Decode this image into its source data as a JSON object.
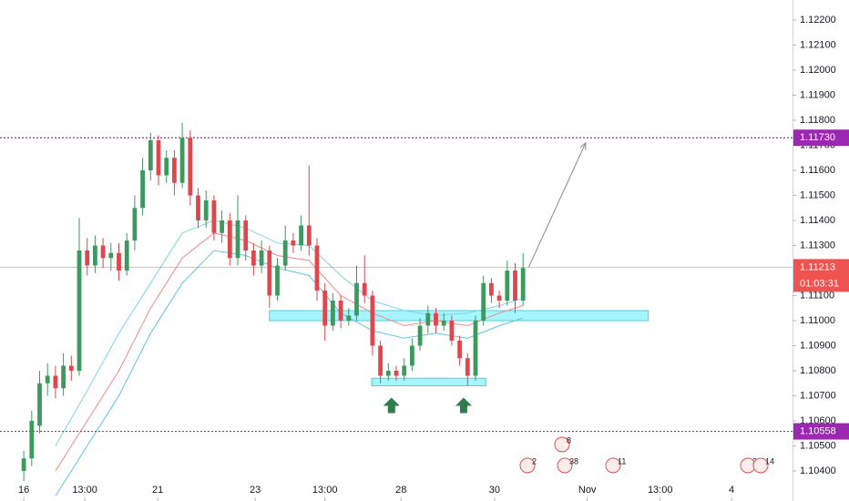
{
  "chart_data": {
    "type": "candlestick",
    "xlim": [
      -3,
      97
    ],
    "ylim": [
      1.1028,
      1.1228
    ],
    "xticks": [
      {
        "value": 0,
        "label": "16"
      },
      {
        "value": 7.7,
        "label": "13:00"
      },
      {
        "value": 16.9,
        "label": "21"
      },
      {
        "value": 29.2,
        "label": "23"
      },
      {
        "value": 38,
        "label": "13:00"
      },
      {
        "value": 47.6,
        "label": "28"
      },
      {
        "value": 59.4,
        "label": "30"
      },
      {
        "value": 71.1,
        "label": "Nov"
      },
      {
        "value": 80.3,
        "label": "13:00"
      },
      {
        "value": 89.3,
        "label": "4"
      }
    ],
    "yticks": [
      {
        "value": 1.104,
        "label": "1.10400"
      },
      {
        "value": 1.105,
        "label": "1.10500"
      },
      {
        "value": 1.106,
        "label": "1.10600"
      },
      {
        "value": 1.107,
        "label": "1.10700"
      },
      {
        "value": 1.108,
        "label": "1.10800"
      },
      {
        "value": 1.109,
        "label": "1.10900"
      },
      {
        "value": 1.11,
        "label": "1.11000"
      },
      {
        "value": 1.111,
        "label": "1.11100"
      },
      {
        "value": 1.112,
        "label": "1.11200"
      },
      {
        "value": 1.113,
        "label": "1.11300"
      },
      {
        "value": 1.114,
        "label": "1.11400"
      },
      {
        "value": 1.115,
        "label": "1.11500"
      },
      {
        "value": 1.116,
        "label": "1.11600"
      },
      {
        "value": 1.117,
        "label": "1.11700"
      },
      {
        "value": 1.118,
        "label": "1.11800"
      },
      {
        "value": 1.119,
        "label": "1.11900"
      },
      {
        "value": 1.12,
        "label": "1.12000"
      },
      {
        "value": 1.121,
        "label": "1.12100"
      },
      {
        "value": 1.122,
        "label": "1.12200"
      }
    ],
    "up_color": "#3d9a5f",
    "down_color": "#e0474c",
    "open": [
      1.104,
      1.1045,
      1.1058,
      1.1075,
      1.1078,
      1.1073,
      1.1082,
      1.108,
      1.1128,
      1.1122,
      1.113,
      1.1125,
      1.1127,
      1.112,
      1.1132,
      1.1145,
      1.116,
      1.1172,
      1.1158,
      1.1165,
      1.1155,
      1.1173,
      1.115,
      1.114,
      1.1148,
      1.1135,
      1.114,
      1.1125,
      1.114,
      1.1128,
      1.1122,
      1.1128,
      1.111,
      1.1122,
      1.1132,
      1.113,
      1.1138,
      1.113,
      1.1112,
      1.1098,
      1.1108,
      1.11,
      1.1102,
      1.1115,
      1.111,
      1.109,
      1.1078,
      1.108,
      1.1078,
      1.1082,
      1.109,
      1.1098,
      1.1103,
      1.1098,
      1.11,
      1.1092,
      1.1085,
      1.1078,
      1.11,
      1.1115,
      1.111,
      1.1108,
      1.112,
      1.1108
    ],
    "high": [
      1.1048,
      1.1064,
      1.108,
      1.1083,
      1.1082,
      1.1087,
      1.1086,
      1.1141,
      1.1133,
      1.1134,
      1.1133,
      1.1131,
      1.1131,
      1.1135,
      1.115,
      1.1165,
      1.1175,
      1.1174,
      1.1168,
      1.1168,
      1.1179,
      1.1176,
      1.1153,
      1.1152,
      1.115,
      1.1144,
      1.1143,
      1.115,
      1.1142,
      1.1131,
      1.1132,
      1.113,
      1.1125,
      1.1138,
      1.1135,
      1.1142,
      1.1162,
      1.1133,
      1.1115,
      1.1111,
      1.111,
      1.1105,
      1.1122,
      1.1126,
      1.1112,
      1.1092,
      1.1083,
      1.1082,
      1.1085,
      1.1093,
      1.1101,
      1.1106,
      1.1105,
      1.1103,
      1.1102,
      1.1094,
      1.1087,
      1.1102,
      1.1118,
      1.1117,
      1.1112,
      1.1124,
      1.1123,
      1.1127
    ],
    "low": [
      1.1036,
      1.1042,
      1.1055,
      1.107,
      1.1069,
      1.107,
      1.1076,
      1.1078,
      1.1118,
      1.1119,
      1.1121,
      1.112,
      1.1116,
      1.1118,
      1.1128,
      1.1142,
      1.1156,
      1.1154,
      1.1155,
      1.115,
      1.1153,
      1.1146,
      1.1137,
      1.1137,
      1.1132,
      1.1131,
      1.1122,
      1.1122,
      1.1124,
      1.1118,
      1.1119,
      1.1105,
      1.1108,
      1.112,
      1.1127,
      1.1128,
      1.1126,
      1.1108,
      1.1092,
      1.1096,
      1.1097,
      1.1098,
      1.11,
      1.1107,
      1.1086,
      1.1075,
      1.1076,
      1.1076,
      1.1076,
      1.108,
      1.1088,
      1.1095,
      1.1095,
      1.1096,
      1.109,
      1.1082,
      1.1074,
      1.1076,
      1.1098,
      1.1107,
      1.1105,
      1.1106,
      1.1103,
      1.1106
    ],
    "close": [
      1.1045,
      1.106,
      1.1075,
      1.1078,
      1.1073,
      1.1082,
      1.108,
      1.1128,
      1.1122,
      1.113,
      1.1125,
      1.1127,
      1.112,
      1.1132,
      1.1145,
      1.116,
      1.1172,
      1.1158,
      1.1165,
      1.1155,
      1.1173,
      1.115,
      1.114,
      1.1148,
      1.1135,
      1.114,
      1.1125,
      1.114,
      1.1128,
      1.1122,
      1.1128,
      1.111,
      1.1122,
      1.1132,
      1.113,
      1.1138,
      1.113,
      1.1112,
      1.1098,
      1.1108,
      1.11,
      1.1102,
      1.1115,
      1.111,
      1.109,
      1.1078,
      1.108,
      1.1078,
      1.1082,
      1.109,
      1.1098,
      1.1103,
      1.1098,
      1.11,
      1.1092,
      1.1085,
      1.1078,
      1.11,
      1.1115,
      1.111,
      1.1108,
      1.112,
      1.1108,
      1.1121
    ],
    "averages": [
      {
        "color": "#7fd3ec",
        "x": [
          4,
          8,
          12,
          16,
          20,
          24,
          28,
          32,
          36,
          40,
          44,
          48,
          52,
          56,
          60,
          63
        ],
        "values": [
          1.105,
          1.1072,
          1.1095,
          1.1115,
          1.1135,
          1.114,
          1.1137,
          1.1131,
          1.113,
          1.1118,
          1.1108,
          1.1104,
          1.1102,
          1.1103,
          1.1106,
          1.1109
        ]
      },
      {
        "color": "#f08a86",
        "x": [
          4,
          8,
          12,
          16,
          20,
          24,
          28,
          32,
          36,
          40,
          44,
          48,
          52,
          56,
          60,
          63
        ],
        "values": [
          1.104,
          1.106,
          1.108,
          1.1105,
          1.1125,
          1.1135,
          1.1132,
          1.1126,
          1.1124,
          1.111,
          1.1103,
          1.1098,
          1.11,
          1.1098,
          1.1103,
          1.1106
        ]
      },
      {
        "color": "#5fc3e4",
        "x": [
          4,
          8,
          12,
          16,
          20,
          24,
          28,
          32,
          36,
          40,
          44,
          48,
          52,
          56,
          60,
          63
        ],
        "values": [
          1.103,
          1.105,
          1.107,
          1.1095,
          1.1115,
          1.1128,
          1.1126,
          1.1121,
          1.1118,
          1.1103,
          1.1096,
          1.1093,
          1.1095,
          1.1093,
          1.1098,
          1.1101
        ]
      }
    ],
    "levels": [
      {
        "value": 1.1173,
        "label": "1.11730",
        "color": "#9c27b0"
      },
      {
        "value": 1.10558,
        "label": "1.10558",
        "color": "#9c27b0"
      }
    ],
    "last_price": {
      "value": 1.11213,
      "label": "1.11213",
      "countdown": "01:03:31",
      "color": "#ef5350"
    },
    "zones": [
      {
        "x": [
          31,
          78.8
        ],
        "y": [
          1.11,
          1.1104
        ]
      },
      {
        "x": [
          43.9,
          58.3
        ],
        "y": [
          1.1074,
          1.1077
        ]
      }
    ],
    "arrow": {
      "x": [
        63.7,
        70.9
      ],
      "y": [
        1.11213,
        1.1171
      ]
    },
    "markers": {
      "x": [
        46.4,
        55.5
      ],
      "y": [
        1.1066,
        1.1066
      ]
    },
    "events": [
      "2",
      "38",
      "8",
      "11",
      "2",
      "14"
    ]
  }
}
